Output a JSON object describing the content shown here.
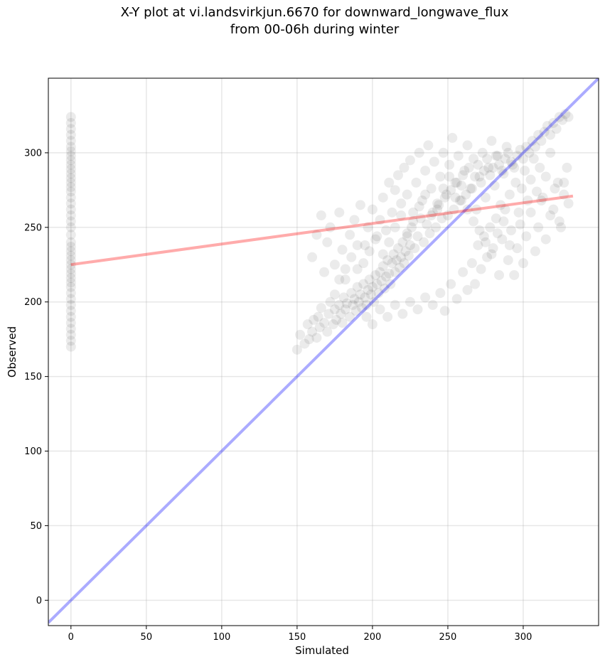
{
  "chart_data": {
    "type": "scatter",
    "title_line1": "X-Y plot at vi.landsvirkjun.6670 for downward_longwave_flux",
    "title_line2": "from 00-06h during winter",
    "xlabel": "Simulated",
    "ylabel": "Observed",
    "xlim": [
      -15,
      350
    ],
    "ylim": [
      -17,
      350
    ],
    "xticks": [
      0,
      50,
      100,
      150,
      200,
      250,
      300
    ],
    "yticks": [
      0,
      50,
      100,
      150,
      200,
      250,
      300
    ],
    "grid": true,
    "point_color": "#000000",
    "point_alpha": 0.08,
    "reference_line": {
      "from": [
        -15,
        -15
      ],
      "to": [
        350,
        350
      ],
      "color": "#0000ff",
      "alpha": 0.33
    },
    "fit_line": {
      "from": [
        0,
        225
      ],
      "to": [
        333,
        271
      ],
      "color": "#ff0000",
      "alpha": 0.33
    },
    "points": [
      [
        0,
        170
      ],
      [
        0,
        174
      ],
      [
        0,
        178
      ],
      [
        0,
        182
      ],
      [
        0,
        186
      ],
      [
        0,
        190
      ],
      [
        0,
        194
      ],
      [
        0,
        198
      ],
      [
        0,
        202
      ],
      [
        0,
        206
      ],
      [
        0,
        210
      ],
      [
        0,
        213
      ],
      [
        0,
        216
      ],
      [
        0,
        219
      ],
      [
        0,
        222
      ],
      [
        0,
        225
      ],
      [
        0,
        228
      ],
      [
        0,
        231
      ],
      [
        0,
        234
      ],
      [
        0,
        237
      ],
      [
        0,
        240
      ],
      [
        0,
        245
      ],
      [
        0,
        250
      ],
      [
        0,
        254
      ],
      [
        0,
        258
      ],
      [
        0,
        262
      ],
      [
        0,
        266
      ],
      [
        0,
        270
      ],
      [
        0,
        274
      ],
      [
        0,
        277
      ],
      [
        0,
        280
      ],
      [
        0,
        283
      ],
      [
        0,
        286
      ],
      [
        0,
        289
      ],
      [
        0,
        292
      ],
      [
        0,
        295
      ],
      [
        0,
        298
      ],
      [
        0,
        301
      ],
      [
        0,
        304
      ],
      [
        0,
        308
      ],
      [
        0,
        312
      ],
      [
        0,
        316
      ],
      [
        0,
        320
      ],
      [
        0,
        324
      ],
      [
        150,
        168
      ],
      [
        152,
        178
      ],
      [
        155,
        172
      ],
      [
        157,
        185
      ],
      [
        158,
        175
      ],
      [
        160,
        180
      ],
      [
        161,
        188
      ],
      [
        163,
        176
      ],
      [
        164,
        190
      ],
      [
        165,
        183
      ],
      [
        166,
        196
      ],
      [
        168,
        186
      ],
      [
        170,
        180
      ],
      [
        171,
        192
      ],
      [
        172,
        200
      ],
      [
        174,
        185
      ],
      [
        175,
        195
      ],
      [
        176,
        188
      ],
      [
        178,
        198
      ],
      [
        179,
        192
      ],
      [
        180,
        186
      ],
      [
        181,
        203
      ],
      [
        182,
        195
      ],
      [
        183,
        199
      ],
      [
        185,
        190
      ],
      [
        186,
        206
      ],
      [
        187,
        198
      ],
      [
        188,
        202
      ],
      [
        189,
        194
      ],
      [
        190,
        210
      ],
      [
        191,
        200
      ],
      [
        192,
        205
      ],
      [
        193,
        196
      ],
      [
        194,
        212
      ],
      [
        195,
        203
      ],
      [
        196,
        198
      ],
      [
        197,
        208
      ],
      [
        198,
        215
      ],
      [
        199,
        205
      ],
      [
        200,
        210
      ],
      [
        201,
        200
      ],
      [
        202,
        218
      ],
      [
        203,
        212
      ],
      [
        204,
        206
      ],
      [
        205,
        220
      ],
      [
        206,
        214
      ],
      [
        207,
        224
      ],
      [
        208,
        209
      ],
      [
        209,
        217
      ],
      [
        210,
        228
      ],
      [
        211,
        219
      ],
      [
        212,
        212
      ],
      [
        213,
        226
      ],
      [
        214,
        232
      ],
      [
        215,
        220
      ],
      [
        216,
        228
      ],
      [
        217,
        236
      ],
      [
        218,
        223
      ],
      [
        219,
        230
      ],
      [
        220,
        240
      ],
      [
        221,
        226
      ],
      [
        222,
        234
      ],
      [
        223,
        244
      ],
      [
        224,
        231
      ],
      [
        225,
        238
      ],
      [
        226,
        250
      ],
      [
        228,
        236
      ],
      [
        230,
        244
      ],
      [
        232,
        256
      ],
      [
        234,
        240
      ],
      [
        236,
        252
      ],
      [
        238,
        246
      ],
      [
        240,
        260
      ],
      [
        242,
        250
      ],
      [
        244,
        265
      ],
      [
        246,
        256
      ],
      [
        248,
        270
      ],
      [
        250,
        258
      ],
      [
        252,
        275
      ],
      [
        254,
        262
      ],
      [
        256,
        280
      ],
      [
        258,
        268
      ],
      [
        260,
        285
      ],
      [
        262,
        272
      ],
      [
        264,
        290
      ],
      [
        266,
        276
      ],
      [
        268,
        284
      ],
      [
        270,
        292
      ],
      [
        272,
        280
      ],
      [
        274,
        288
      ],
      [
        276,
        296
      ],
      [
        278,
        285
      ],
      [
        280,
        290
      ],
      [
        282,
        298
      ],
      [
        284,
        292
      ],
      [
        286,
        288
      ],
      [
        288,
        296
      ],
      [
        290,
        300
      ],
      [
        292,
        294
      ],
      [
        294,
        290
      ],
      [
        296,
        298
      ],
      [
        298,
        302
      ],
      [
        300,
        296
      ],
      [
        302,
        304
      ],
      [
        304,
        300
      ],
      [
        306,
        308
      ],
      [
        308,
        304
      ],
      [
        310,
        312
      ],
      [
        312,
        308
      ],
      [
        314,
        314
      ],
      [
        316,
        318
      ],
      [
        318,
        312
      ],
      [
        320,
        320
      ],
      [
        322,
        316
      ],
      [
        324,
        324
      ],
      [
        326,
        322
      ],
      [
        328,
        326
      ],
      [
        330,
        324
      ],
      [
        160,
        230
      ],
      [
        163,
        245
      ],
      [
        166,
        258
      ],
      [
        168,
        220
      ],
      [
        170,
        240
      ],
      [
        172,
        250
      ],
      [
        175,
        225
      ],
      [
        178,
        260
      ],
      [
        180,
        235
      ],
      [
        182,
        215
      ],
      [
        185,
        245
      ],
      [
        188,
        255
      ],
      [
        190,
        222
      ],
      [
        192,
        265
      ],
      [
        195,
        238
      ],
      [
        197,
        250
      ],
      [
        200,
        262
      ],
      [
        202,
        242
      ],
      [
        205,
        255
      ],
      [
        207,
        270
      ],
      [
        209,
        248
      ],
      [
        211,
        280
      ],
      [
        213,
        260
      ],
      [
        215,
        275
      ],
      [
        217,
        285
      ],
      [
        219,
        266
      ],
      [
        221,
        290
      ],
      [
        223,
        272
      ],
      [
        225,
        295
      ],
      [
        227,
        260
      ],
      [
        229,
        280
      ],
      [
        231,
        300
      ],
      [
        233,
        268
      ],
      [
        235,
        288
      ],
      [
        237,
        305
      ],
      [
        239,
        276
      ],
      [
        241,
        294
      ],
      [
        243,
        262
      ],
      [
        245,
        284
      ],
      [
        247,
        300
      ],
      [
        249,
        272
      ],
      [
        251,
        292
      ],
      [
        253,
        310
      ],
      [
        255,
        280
      ],
      [
        257,
        298
      ],
      [
        259,
        268
      ],
      [
        261,
        288
      ],
      [
        263,
        305
      ],
      [
        265,
        276
      ],
      [
        267,
        296
      ],
      [
        269,
        262
      ],
      [
        271,
        284
      ],
      [
        273,
        300
      ],
      [
        275,
        270
      ],
      [
        277,
        290
      ],
      [
        279,
        308
      ],
      [
        281,
        278
      ],
      [
        283,
        298
      ],
      [
        285,
        265
      ],
      [
        287,
        286
      ],
      [
        289,
        304
      ],
      [
        291,
        272
      ],
      [
        293,
        292
      ],
      [
        295,
        280
      ],
      [
        297,
        260
      ],
      [
        299,
        276
      ],
      [
        301,
        288
      ],
      [
        303,
        268
      ],
      [
        305,
        282
      ],
      [
        307,
        296
      ],
      [
        309,
        274
      ],
      [
        311,
        290
      ],
      [
        313,
        270
      ],
      [
        315,
        284
      ],
      [
        318,
        300
      ],
      [
        320,
        262
      ],
      [
        323,
        280
      ],
      [
        325,
        250
      ],
      [
        327,
        272
      ],
      [
        329,
        290
      ],
      [
        196,
        190
      ],
      [
        200,
        185
      ],
      [
        205,
        195
      ],
      [
        210,
        190
      ],
      [
        215,
        198
      ],
      [
        220,
        192
      ],
      [
        225,
        200
      ],
      [
        230,
        195
      ],
      [
        235,
        203
      ],
      [
        240,
        198
      ],
      [
        245,
        206
      ],
      [
        248,
        194
      ],
      [
        252,
        212
      ],
      [
        256,
        202
      ],
      [
        260,
        220
      ],
      [
        263,
        208
      ],
      [
        266,
        226
      ],
      [
        268,
        212
      ],
      [
        270,
        238
      ],
      [
        272,
        222
      ],
      [
        274,
        244
      ],
      [
        276,
        230
      ],
      [
        278,
        250
      ],
      [
        280,
        236
      ],
      [
        282,
        256
      ],
      [
        284,
        218
      ],
      [
        286,
        242
      ],
      [
        288,
        262
      ],
      [
        290,
        228
      ],
      [
        292,
        248
      ],
      [
        294,
        218
      ],
      [
        296,
        236
      ],
      [
        298,
        252
      ],
      [
        300,
        226
      ],
      [
        302,
        244
      ],
      [
        305,
        260
      ],
      [
        308,
        234
      ],
      [
        310,
        250
      ],
      [
        312,
        268
      ],
      [
        315,
        242
      ],
      [
        318,
        258
      ],
      [
        321,
        276
      ],
      [
        324,
        254
      ],
      [
        327,
        280
      ],
      [
        330,
        266
      ],
      [
        175,
        205
      ],
      [
        178,
        215
      ],
      [
        182,
        222
      ],
      [
        186,
        230
      ],
      [
        190,
        238
      ],
      [
        194,
        226
      ],
      [
        198,
        234
      ],
      [
        203,
        244
      ],
      [
        207,
        232
      ],
      [
        211,
        240
      ],
      [
        215,
        250
      ],
      [
        219,
        258
      ],
      [
        223,
        246
      ],
      [
        227,
        254
      ],
      [
        231,
        264
      ],
      [
        235,
        272
      ],
      [
        239,
        258
      ],
      [
        243,
        266
      ],
      [
        247,
        276
      ],
      [
        251,
        284
      ],
      [
        255,
        270
      ],
      [
        259,
        278
      ],
      [
        263,
        262
      ],
      [
        267,
        254
      ],
      [
        271,
        248
      ],
      [
        275,
        240
      ],
      [
        279,
        232
      ],
      [
        283,
        246
      ],
      [
        287,
        254
      ],
      [
        291,
        238
      ]
    ]
  }
}
